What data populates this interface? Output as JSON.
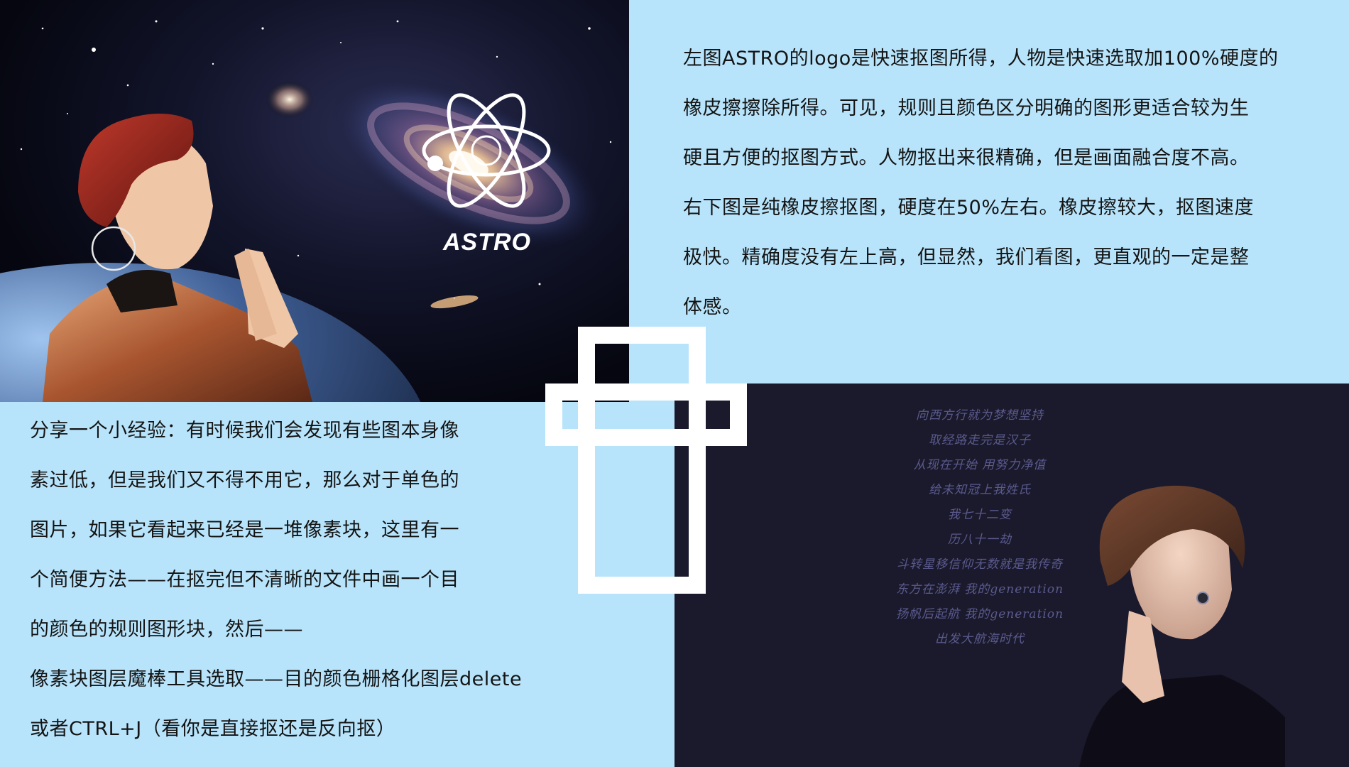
{
  "intro_lines": [
    "左图ASTRO的logo是快速抠图所得，人物是快速选取加100%硬度的",
    "橡皮擦擦除所得。可见，规则且颜色区分明确的图形更适合较为生",
    "硬且方便的抠图方式。人物抠出来很精确，但是画面融合度不高。",
    "右下图是纯橡皮擦抠图，硬度在50%左右。橡皮擦较大，抠图速度",
    "极快。精确度没有左上高，但显然，我们看图，更直观的一定是整",
    "体感。"
  ],
  "tip_lines": [
    "分享一个小经验：有时候我们会发现有些图本身像",
    "素过低，但是我们又不得不用它，那么对于单色的",
    "图片，如果它看起来已经是一堆像素块，这里有一",
    "个简便方法——在抠完但不清晰的文件中画一个目",
    "的颜色的规则图形块，然后——",
    "像素块图层魔棒工具选取——目的颜色栅格化图层delete",
    "或者CTRL+J（看你是直接抠还是反向抠）"
  ],
  "logo": {
    "text": "ASTRO"
  },
  "lyrics": [
    "向西方行就为梦想坚持",
    "取经路走完是汉子",
    "从现在开始 用努力净值",
    "给未知冠上我姓氏",
    "我七十二变",
    "历八十一劫",
    "斗转星移信仰无数就是我传奇",
    "东方在澎湃 我的generation",
    "扬帆后起航 我的generation",
    "出发大航海时代"
  ],
  "colors": {
    "background": "#b8e4fb",
    "dark_panel": "#1b1a2c",
    "lyric_text": "#5b5a8e",
    "frame": "#ffffff"
  }
}
